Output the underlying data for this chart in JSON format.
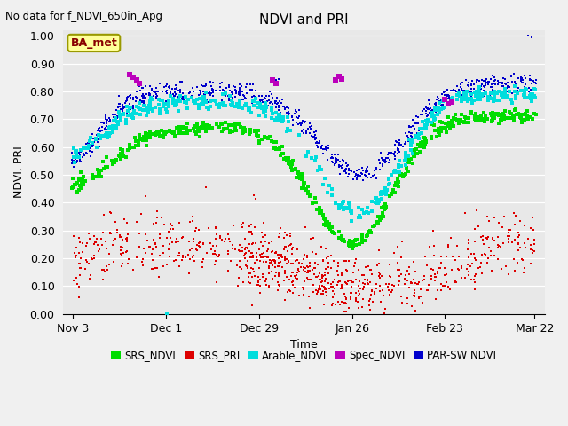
{
  "title": "NDVI and PRI",
  "top_left_text": "No data for f_NDVI_650in_Apg",
  "ylabel": "NDVI, PRI",
  "xlabel": "Time",
  "annotation_box": "BA_met",
  "ylim": [
    0.0,
    1.02
  ],
  "yticks": [
    0.0,
    0.1,
    0.2,
    0.3,
    0.4,
    0.5,
    0.6,
    0.7,
    0.8,
    0.9,
    1.0
  ],
  "xtick_labels": [
    "Nov 3",
    "Dec 1",
    "Dec 29",
    "Jan 26",
    "Feb 23",
    "Mar 22"
  ],
  "xtick_days": [
    0,
    28,
    56,
    84,
    112,
    139
  ],
  "colors": {
    "SRS_NDVI": "#00dd00",
    "SRS_PRI": "#dd0000",
    "Arable_NDVI": "#00dddd",
    "Spec_NDVI": "#bb00bb",
    "PAR_SW_NDVI": "#0000cc",
    "plot_bg": "#e8e8e8",
    "fig_bg": "#f0f0f0",
    "grid": "#ffffff",
    "annotation_bg": "#ffff99",
    "annotation_border": "#999900",
    "annotation_text": "#880000"
  },
  "legend_entries": [
    "SRS_NDVI",
    "SRS_PRI",
    "Arable_NDVI",
    "Spec_NDVI",
    "PAR-SW NDVI"
  ]
}
